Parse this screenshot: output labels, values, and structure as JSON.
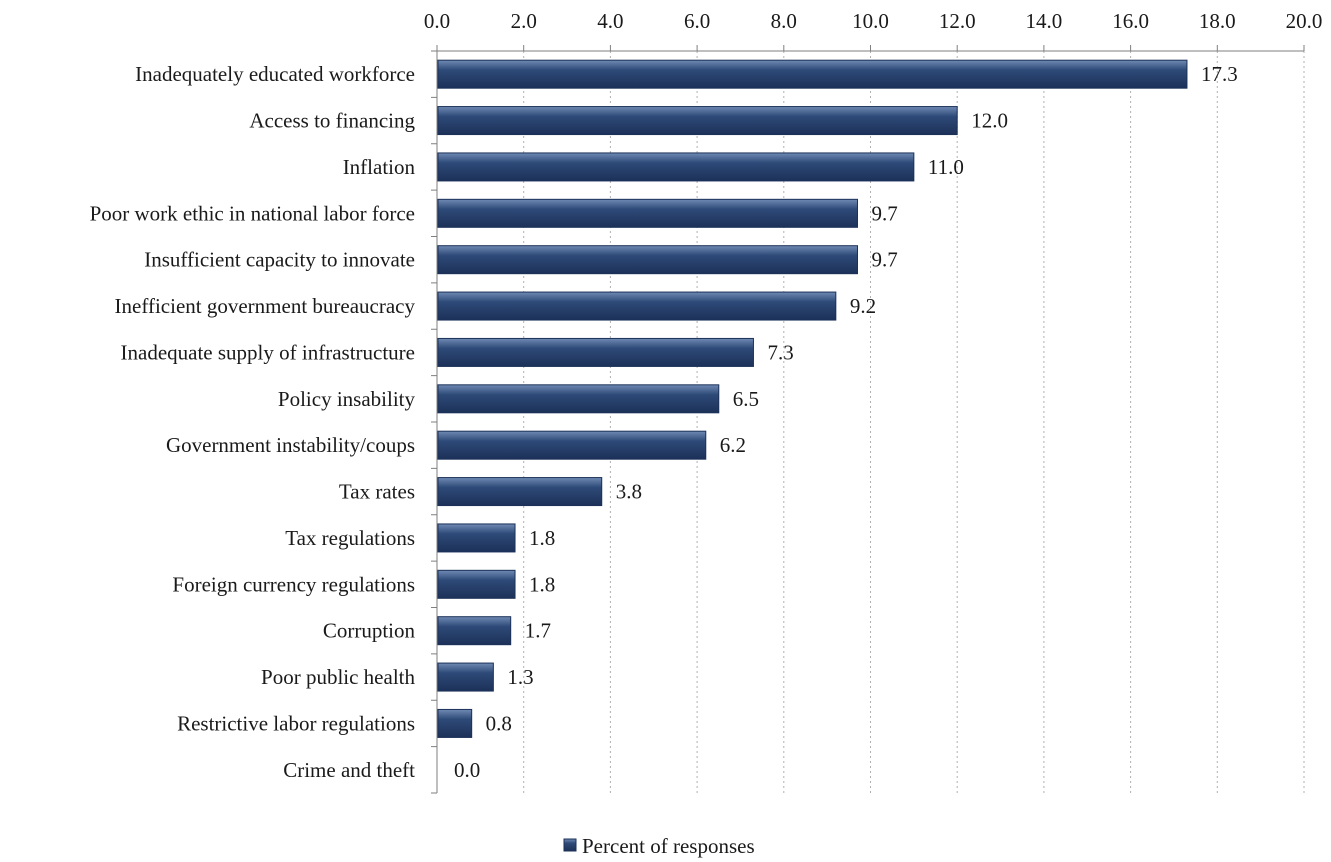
{
  "chart_data": {
    "type": "bar",
    "orientation": "horizontal",
    "categories": [
      "Inadequately educated workforce",
      "Access to financing",
      "Inflation",
      "Poor work ethic in national labor force",
      "Insufficient capacity to innovate",
      "Inefficient government bureaucracy",
      "Inadequate supply of infrastructure",
      "Policy insability",
      "Government instability/coups",
      "Tax rates",
      "Tax regulations",
      "Foreign currency regulations",
      "Corruption",
      "Poor public health",
      "Restrictive labor regulations",
      "Crime and theft"
    ],
    "series": [
      {
        "name": "Percent of responses",
        "values": [
          17.3,
          12.0,
          11.0,
          9.7,
          9.7,
          9.2,
          7.3,
          6.5,
          6.2,
          3.8,
          1.8,
          1.8,
          1.7,
          1.3,
          0.8,
          0.0
        ],
        "data_labels": [
          "17.3",
          "12.0",
          "11.0",
          "9.7",
          "9.7",
          "9.2",
          "7.3",
          "6.5",
          "6.2",
          "3.8",
          "1.8",
          "1.8",
          "1.7",
          "1.3",
          "0.8",
          "0.0"
        ]
      }
    ],
    "xlim": [
      0,
      20
    ],
    "x_ticks": [
      0,
      2,
      4,
      6,
      8,
      10,
      12,
      14,
      16,
      18,
      20
    ],
    "x_tick_labels": [
      "0.0",
      "2.0",
      "4.0",
      "6.0",
      "8.0",
      "10.0",
      "12.0",
      "14.0",
      "16.0",
      "18.0",
      "20.0"
    ],
    "x_axis_position": "top",
    "grid": "vertical dotted",
    "legend": {
      "position": "bottom-center",
      "entries": [
        "Percent of responses"
      ]
    },
    "colors": {
      "bar": "#2e4a78",
      "bar_light": "#6f8ab3",
      "bar_dark": "#1c3158",
      "grid": "#b0b0b0",
      "axis": "#7f7f7f"
    }
  }
}
